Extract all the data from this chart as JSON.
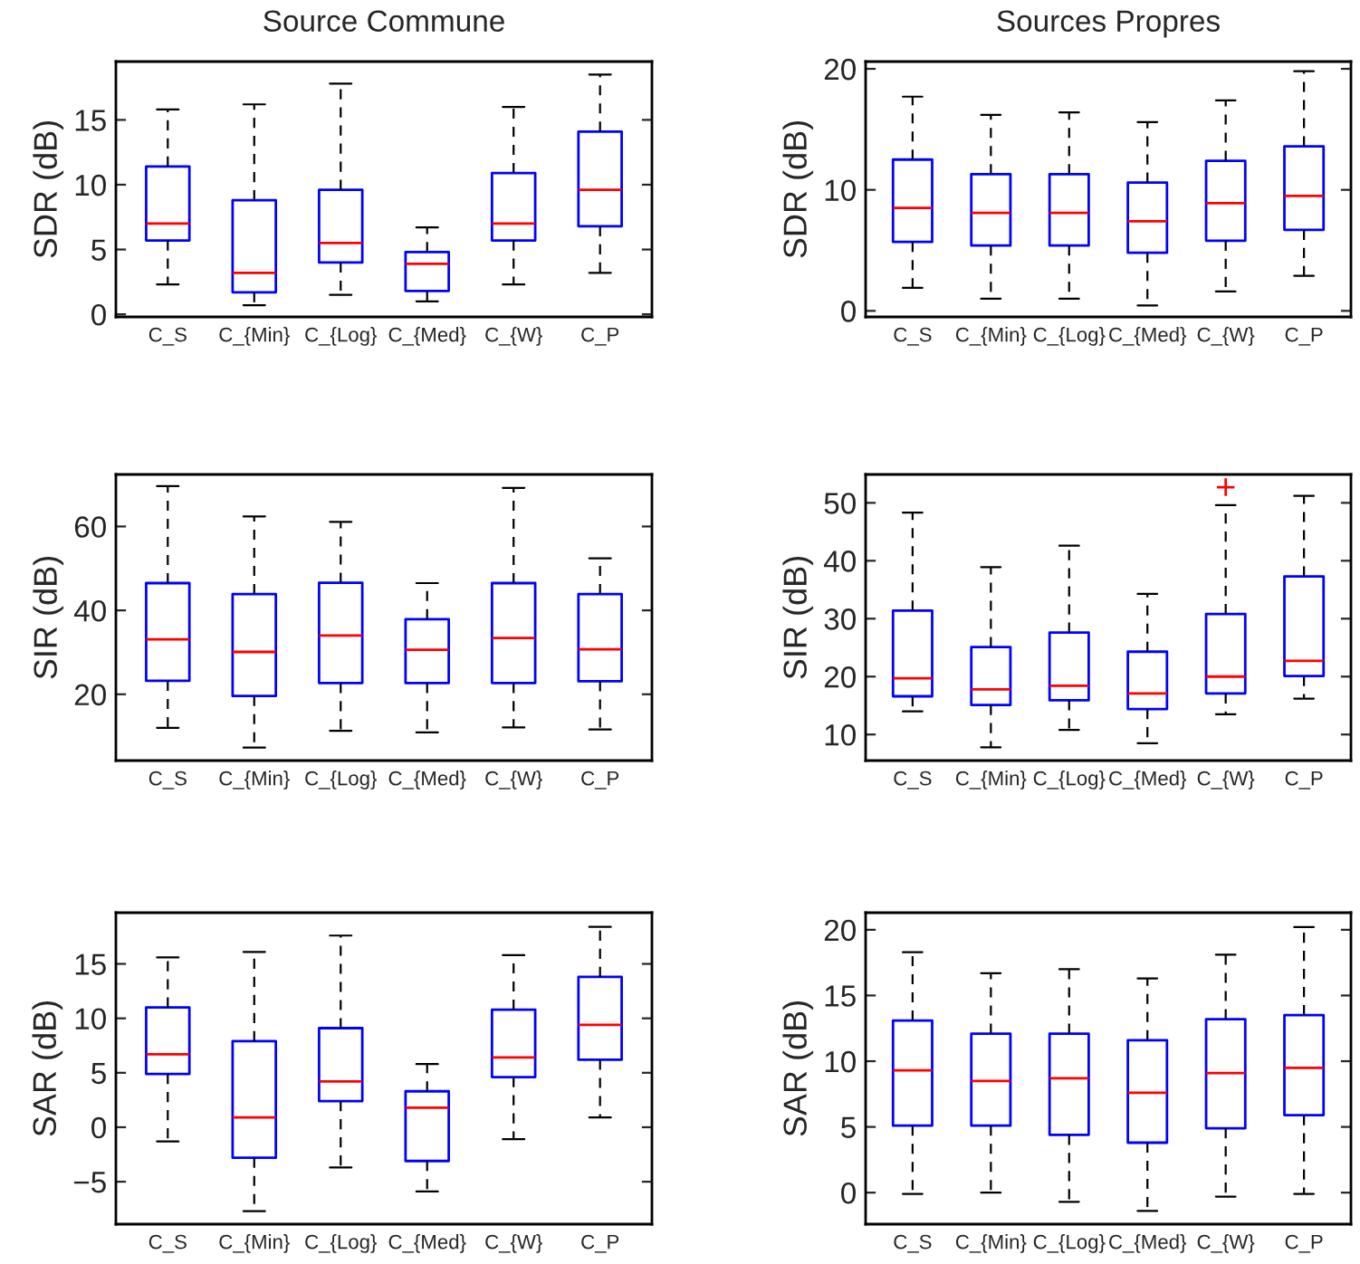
{
  "chart_data": [
    {
      "type": "box",
      "title": "Source Commune",
      "ylabel": "SDR (dB)",
      "categories": [
        "C_S",
        "C_{Min}",
        "C_{Log}",
        "C_{Med}",
        "C_{W}",
        "C_P"
      ],
      "ylim": [
        -0.2,
        19.5
      ],
      "yticks": [
        0,
        5,
        10,
        15
      ],
      "grid": false,
      "legend": false,
      "series": [
        {
          "color": "#0000ff",
          "boxes": [
            {
              "low": 2.3,
              "q1": 5.7,
              "median": 7.0,
              "q3": 11.4,
              "high": 15.8
            },
            {
              "low": 0.7,
              "q1": 1.7,
              "median": 3.2,
              "q3": 8.8,
              "high": 16.2
            },
            {
              "low": 1.5,
              "q1": 4.0,
              "median": 5.5,
              "q3": 9.6,
              "high": 17.8
            },
            {
              "low": 1.0,
              "q1": 1.8,
              "median": 3.9,
              "q3": 4.8,
              "high": 6.7
            },
            {
              "low": 2.3,
              "q1": 5.7,
              "median": 7.0,
              "q3": 10.9,
              "high": 16.0
            },
            {
              "low": 3.2,
              "q1": 6.8,
              "median": 9.6,
              "q3": 14.1,
              "high": 18.5
            }
          ]
        }
      ]
    },
    {
      "type": "box",
      "title": "Sources Propres",
      "ylabel": "SDR (dB)",
      "categories": [
        "C_S",
        "C_{Min}",
        "C_{Log}",
        "C_{Med}",
        "C_{W}",
        "C_P"
      ],
      "ylim": [
        -0.5,
        20.6
      ],
      "yticks": [
        0,
        10,
        20
      ],
      "grid": false,
      "legend": false,
      "series": [
        {
          "color": "#0000ff",
          "boxes": [
            {
              "low": 1.9,
              "q1": 5.7,
              "median": 8.5,
              "q3": 12.5,
              "high": 17.7
            },
            {
              "low": 1.0,
              "q1": 5.4,
              "median": 8.1,
              "q3": 11.3,
              "high": 16.2
            },
            {
              "low": 1.0,
              "q1": 5.4,
              "median": 8.1,
              "q3": 11.3,
              "high": 16.4
            },
            {
              "low": 0.45,
              "q1": 4.8,
              "median": 7.4,
              "q3": 10.6,
              "high": 15.6
            },
            {
              "low": 1.6,
              "q1": 5.8,
              "median": 8.9,
              "q3": 12.4,
              "high": 17.4
            },
            {
              "low": 2.9,
              "q1": 6.7,
              "median": 9.5,
              "q3": 13.6,
              "high": 19.8
            }
          ]
        }
      ]
    },
    {
      "type": "box",
      "ylabel": "SIR (dB)",
      "categories": [
        "C_S",
        "C_{Min}",
        "C_{Log}",
        "C_{Med}",
        "C_{W}",
        "C_P"
      ],
      "ylim": [
        4.2,
        72.4
      ],
      "yticks": [
        20,
        40,
        60
      ],
      "grid": false,
      "legend": false,
      "series": [
        {
          "color": "#0000ff",
          "boxes": [
            {
              "low": 12.0,
              "q1": 23.2,
              "median": 33.1,
              "q3": 46.5,
              "high": 69.6
            },
            {
              "low": 7.3,
              "q1": 19.6,
              "median": 30.1,
              "q3": 43.9,
              "high": 62.4
            },
            {
              "low": 11.3,
              "q1": 22.7,
              "median": 34.0,
              "q3": 46.6,
              "high": 61.1
            },
            {
              "low": 10.9,
              "q1": 22.7,
              "median": 30.6,
              "q3": 37.9,
              "high": 46.5
            },
            {
              "low": 12.1,
              "q1": 22.7,
              "median": 33.4,
              "q3": 46.5,
              "high": 69.2
            },
            {
              "low": 11.6,
              "q1": 23.1,
              "median": 30.7,
              "q3": 43.9,
              "high": 52.4
            }
          ]
        }
      ]
    },
    {
      "type": "box",
      "ylabel": "SIR (dB)",
      "categories": [
        "C_S",
        "C_{Min}",
        "C_{Log}",
        "C_{Med}",
        "C_{W}",
        "C_P"
      ],
      "ylim": [
        5.5,
        54.9
      ],
      "yticks": [
        10,
        20,
        30,
        40,
        50
      ],
      "grid": false,
      "legend": false,
      "series": [
        {
          "color": "#0000ff",
          "boxes": [
            {
              "low": 14.0,
              "q1": 16.6,
              "median": 19.7,
              "q3": 31.4,
              "high": 48.3
            },
            {
              "low": 7.8,
              "q1": 15.1,
              "median": 17.8,
              "q3": 25.1,
              "high": 38.9
            },
            {
              "low": 10.8,
              "q1": 15.9,
              "median": 18.4,
              "q3": 27.6,
              "high": 42.6
            },
            {
              "low": 8.5,
              "q1": 14.4,
              "median": 17.1,
              "q3": 24.3,
              "high": 34.3
            },
            {
              "low": 13.5,
              "q1": 17.1,
              "median": 20.0,
              "q3": 30.8,
              "high": 49.6,
              "outliers": [
                52.7
              ]
            },
            {
              "low": 16.2,
              "q1": 20.1,
              "median": 22.7,
              "q3": 37.3,
              "high": 51.2
            }
          ]
        }
      ]
    },
    {
      "type": "box",
      "ylabel": "SAR (dB)",
      "categories": [
        "C_S",
        "C_{Min}",
        "C_{Log}",
        "C_{Med}",
        "C_{W}",
        "C_P"
      ],
      "ylim": [
        -8.9,
        19.7
      ],
      "yticks": [
        {
          "value": -5,
          "label": "−5"
        },
        0,
        5,
        10,
        15
      ],
      "grid": false,
      "legend": false,
      "series": [
        {
          "color": "#0000ff",
          "boxes": [
            {
              "low": -1.3,
              "q1": 4.9,
              "median": 6.7,
              "q3": 11.0,
              "high": 15.6
            },
            {
              "low": -7.7,
              "q1": -2.8,
              "median": 0.9,
              "q3": 7.9,
              "high": 16.1
            },
            {
              "low": -3.7,
              "q1": 2.4,
              "median": 4.2,
              "q3": 9.1,
              "high": 17.6
            },
            {
              "low": -5.9,
              "q1": -3.1,
              "median": 1.8,
              "q3": 3.3,
              "high": 5.8
            },
            {
              "low": -1.1,
              "q1": 4.6,
              "median": 6.4,
              "q3": 10.8,
              "high": 15.8
            },
            {
              "low": 0.9,
              "q1": 6.2,
              "median": 9.4,
              "q3": 13.8,
              "high": 18.4
            }
          ]
        }
      ]
    },
    {
      "type": "box",
      "ylabel": "SAR (dB)",
      "categories": [
        "C_S",
        "C_{Min}",
        "C_{Log}",
        "C_{Med}",
        "C_{W}",
        "C_P"
      ],
      "ylim": [
        -2.4,
        21.3
      ],
      "yticks": [
        0,
        5,
        10,
        15,
        20
      ],
      "grid": false,
      "legend": false,
      "series": [
        {
          "color": "#0000ff",
          "boxes": [
            {
              "low": -0.1,
              "q1": 5.1,
              "median": 9.3,
              "q3": 13.1,
              "high": 18.3
            },
            {
              "low": 0.0,
              "q1": 5.1,
              "median": 8.5,
              "q3": 12.1,
              "high": 16.7
            },
            {
              "low": -0.7,
              "q1": 4.4,
              "median": 8.7,
              "q3": 12.1,
              "high": 17.0
            },
            {
              "low": -1.4,
              "q1": 3.8,
              "median": 7.6,
              "q3": 11.6,
              "high": 16.3
            },
            {
              "low": -0.3,
              "q1": 4.9,
              "median": 9.1,
              "q3": 13.2,
              "high": 18.1
            },
            {
              "low": -0.1,
              "q1": 5.9,
              "median": 9.5,
              "q3": 13.5,
              "high": 20.2
            }
          ]
        }
      ]
    }
  ]
}
